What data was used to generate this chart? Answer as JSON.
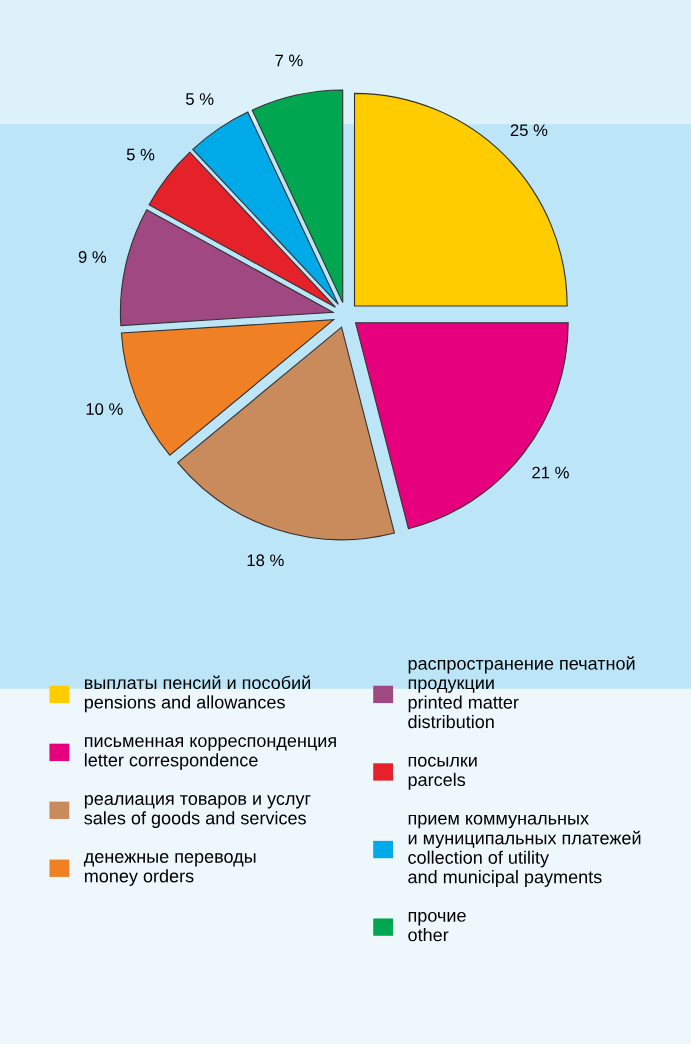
{
  "chart_data": {
    "type": "pie",
    "categories": [
      "выплаты пенсий и пособий\npensions and allowances",
      "письменная корреспонденция\nletter correspondence",
      "реалиация товаров и услуг\nsales of goods and services",
      "денежные переводы\nmoney orders",
      "распространение печатной\nпродукции\nprinted matter\ndistribution",
      "посылки\nparcels",
      "прием коммунальных\nи муниципальных платежей\ncollection of utility\nand municipal payments",
      "прочие\nother"
    ],
    "values": [
      25,
      21,
      18,
      10,
      9,
      5,
      5,
      7
    ],
    "colors": [
      "#ffcc00",
      "#e6007e",
      "#c98b5c",
      "#f08024",
      "#a04882",
      "#e52229",
      "#00a9e8",
      "#00a650"
    ],
    "value_labels": [
      "25 %",
      "21 %",
      "18 %",
      "10 %",
      "9 %",
      "5 %",
      "5 %",
      "7 %"
    ],
    "legend": "bottom"
  }
}
